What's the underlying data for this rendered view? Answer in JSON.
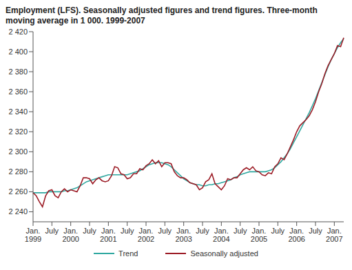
{
  "chart_data": {
    "type": "line",
    "title": "Employment (LFS). Seasonally adjusted figures and trend figures. Three-month moving average in 1 000. 1999-2007",
    "categories": [
      "Jan. 1999",
      null,
      null,
      null,
      null,
      null,
      "July",
      null,
      null,
      null,
      null,
      null,
      "Jan. 2000",
      null,
      null,
      null,
      null,
      null,
      "July",
      null,
      null,
      null,
      null,
      null,
      "Jan. 2001",
      null,
      null,
      null,
      null,
      null,
      "July",
      null,
      null,
      null,
      null,
      null,
      "Jan. 2002",
      null,
      null,
      null,
      null,
      null,
      "July",
      null,
      null,
      null,
      null,
      null,
      "Jan. 2003",
      null,
      null,
      null,
      null,
      null,
      "July",
      null,
      null,
      null,
      null,
      null,
      "Jan. 2004",
      null,
      null,
      null,
      null,
      null,
      "July",
      null,
      null,
      null,
      null,
      null,
      "Jan. 2005",
      null,
      null,
      null,
      null,
      null,
      "July",
      null,
      null,
      null,
      null,
      null,
      "Jan. 2006",
      null,
      null,
      null,
      null,
      null,
      "July",
      null,
      null,
      null,
      null,
      null,
      "Jan. 2007",
      null,
      null,
      null
    ],
    "series": [
      {
        "name": "Trend",
        "color": "#2fa8a0",
        "values": [
          2259,
          2259,
          2259,
          2259,
          2259,
          2260,
          2260,
          2260,
          2260,
          2260,
          2261,
          2261,
          2262,
          2263,
          2264,
          2266,
          2268,
          2270,
          2271,
          2272,
          2273,
          2274,
          2275,
          2276,
          2277,
          2277,
          2277,
          2277,
          2277,
          2277,
          2277,
          2278,
          2279,
          2280,
          2281,
          2283,
          2285,
          2287,
          2288,
          2289,
          2289,
          2289,
          2288,
          2287,
          2285,
          2282,
          2279,
          2276,
          2273,
          2271,
          2269,
          2268,
          2267,
          2267,
          2266,
          2266,
          2267,
          2267,
          2268,
          2268,
          2269,
          2270,
          2271,
          2272,
          2274,
          2275,
          2277,
          2278,
          2279,
          2280,
          2280,
          2280,
          2280,
          2280,
          2280,
          2281,
          2282,
          2284,
          2287,
          2290,
          2294,
          2298,
          2303,
          2309,
          2315,
          2321,
          2327,
          2333,
          2339,
          2346,
          2353,
          2361,
          2369,
          2377,
          2385,
          2392,
          2398,
          2404,
          2409,
          2413
        ]
      },
      {
        "name": "Seasonally adjusted",
        "color": "#9c1c26",
        "values": [
          2259,
          2256,
          2250,
          2245,
          2256,
          2261,
          2262,
          2256,
          2254,
          2260,
          2263,
          2260,
          2262,
          2261,
          2260,
          2266,
          2274,
          2274,
          2273,
          2268,
          2272,
          2274,
          2271,
          2270,
          2271,
          2276,
          2285,
          2284,
          2278,
          2277,
          2273,
          2274,
          2278,
          2278,
          2283,
          2282,
          2286,
          2288,
          2292,
          2288,
          2291,
          2285,
          2289,
          2289,
          2288,
          2280,
          2276,
          2274,
          2274,
          2272,
          2269,
          2268,
          2267,
          2262,
          2264,
          2270,
          2272,
          2278,
          2268,
          2265,
          2262,
          2266,
          2273,
          2272,
          2274,
          2274,
          2278,
          2282,
          2284,
          2282,
          2285,
          2281,
          2280,
          2277,
          2276,
          2279,
          2278,
          2285,
          2288,
          2294,
          2292,
          2298,
          2305,
          2312,
          2320,
          2326,
          2329,
          2332,
          2336,
          2342,
          2350,
          2360,
          2368,
          2378,
          2386,
          2392,
          2398,
          2406,
          2405,
          2414
        ]
      }
    ],
    "ylim": [
      2230,
      2420
    ],
    "yticks": [
      {
        "value": 2240,
        "label": "2 240"
      },
      {
        "value": 2260,
        "label": "2 260"
      },
      {
        "value": 2280,
        "label": "2 280"
      },
      {
        "value": 2300,
        "label": "2 300"
      },
      {
        "value": 2320,
        "label": "2 320"
      },
      {
        "value": 2340,
        "label": "2 340"
      },
      {
        "value": 2360,
        "label": "2 360"
      },
      {
        "value": 2380,
        "label": "2 380"
      },
      {
        "value": 2400,
        "label": "2 400"
      },
      {
        "value": 2420,
        "label": "2 420"
      }
    ],
    "grid": false,
    "legend": "bottom"
  }
}
